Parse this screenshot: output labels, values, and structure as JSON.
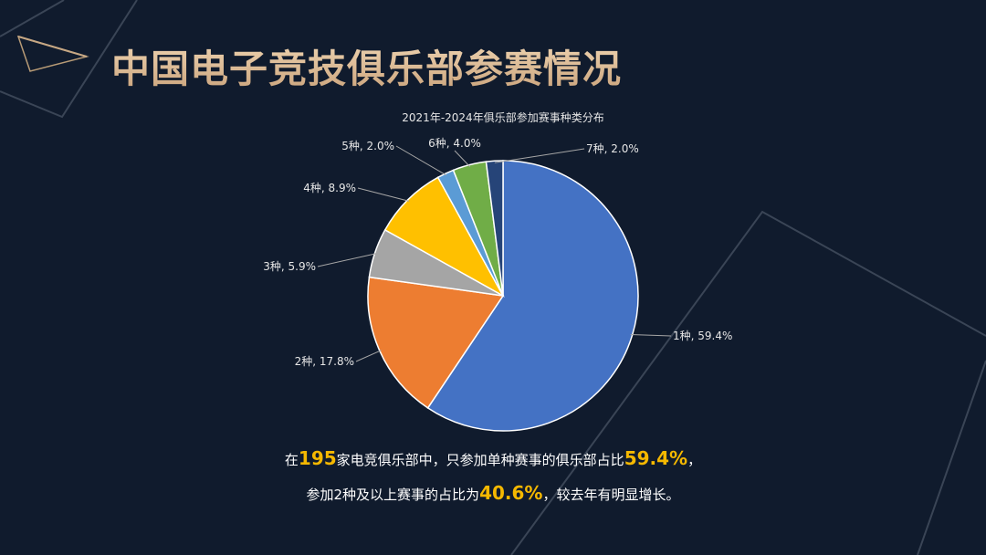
{
  "page": {
    "title": "中国电子竞技俱乐部参赛情况"
  },
  "chart_data": {
    "type": "pie",
    "title": "2021年-2024年俱乐部参加赛事种类分布",
    "slices": [
      {
        "label": "1种",
        "value": 59.4,
        "value_text": "59.4%",
        "color": "#4472c4"
      },
      {
        "label": "2种",
        "value": 17.8,
        "value_text": "17.8%",
        "color": "#ed7d31"
      },
      {
        "label": "3种",
        "value": 5.9,
        "value_text": "5.9%",
        "color": "#a5a5a5"
      },
      {
        "label": "4种",
        "value": 8.9,
        "value_text": "8.9%",
        "color": "#ffc000"
      },
      {
        "label": "5种",
        "value": 2.0,
        "value_text": "2.0%",
        "color": "#5b9bd5"
      },
      {
        "label": "6种",
        "value": 4.0,
        "value_text": "4.0%",
        "color": "#70ad47"
      },
      {
        "label": "7种",
        "value": 2.0,
        "value_text": "2.0%",
        "color": "#264478"
      }
    ],
    "start_angle_deg": 0,
    "direction": "clockwise",
    "label_color": "#e6e6e6",
    "slice_border_color": "#ffffff"
  },
  "summary": {
    "line1": {
      "pre": "在",
      "num": "195",
      "mid": "家电竞俱乐部中，只参加单种赛事的俱乐部占比",
      "pct": "59.4%",
      "post": "，"
    },
    "line2": {
      "pre": "参加2种及以上赛事的占比为",
      "pct": "40.6%",
      "post": "，较去年有明显增长。"
    }
  },
  "colors": {
    "background": "#101b2d",
    "title_gold": "#d9b891",
    "highlight": "#f5b800"
  }
}
